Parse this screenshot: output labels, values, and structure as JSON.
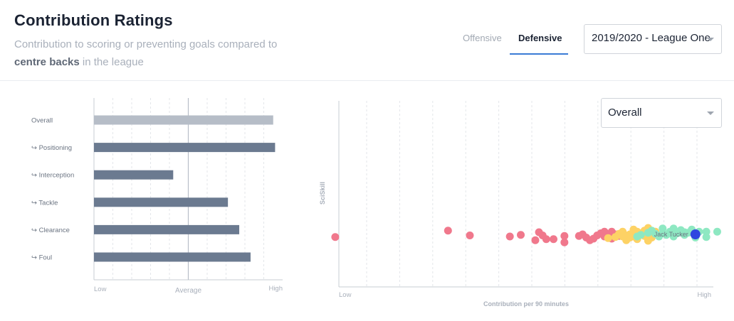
{
  "header": {
    "title": "Contribution Ratings",
    "subtitle_before": "Contribution to scoring or preventing goals compared to",
    "subtitle_bold": "centre backs",
    "subtitle_after": "in the league",
    "tabs": [
      {
        "label": "Offensive",
        "active": false
      },
      {
        "label": "Defensive",
        "active": true
      }
    ],
    "season_select": "2019/2020 - League One",
    "accent_color": "#3a7bd5"
  },
  "metric_select": "Overall",
  "chart_data": [
    {
      "type": "bar",
      "orientation": "horizontal",
      "categories": [
        "Overall",
        "↪ Positioning",
        "↪ Interception",
        "↪ Tackle",
        "↪ Clearance",
        "↪ Foul"
      ],
      "values": [
        0.95,
        0.96,
        0.42,
        0.71,
        0.77,
        0.83
      ],
      "bar_colors": [
        "#b6bdc7",
        "#6b7a90",
        "#6b7a90",
        "#6b7a90",
        "#6b7a90",
        "#6b7a90"
      ],
      "xlim": [
        0,
        1
      ],
      "average": 0.5,
      "xtick_labels": {
        "low": "Low",
        "average": "Average",
        "high": "High"
      },
      "grid": "vertical dashed"
    },
    {
      "type": "scatter",
      "xlabel": "Contribution per 90 minutes",
      "ylabel": "SciSkill",
      "xlim": [
        0,
        1
      ],
      "xtick_labels": {
        "low": "Low",
        "high": "High"
      },
      "grid": "vertical dashed",
      "colors": {
        "red": "#f0788c",
        "yellow": "#fdd265",
        "green": "#8ee8c2",
        "highlight": "#2f46e0"
      },
      "highlight": {
        "label": "Jack Tucker",
        "x": 0.98,
        "y": 0.5
      },
      "points": {
        "red": [
          [
            -0.01,
            0.45
          ],
          [
            0.3,
            0.57
          ],
          [
            0.36,
            0.48
          ],
          [
            0.47,
            0.46
          ],
          [
            0.5,
            0.49
          ],
          [
            0.55,
            0.54
          ],
          [
            0.56,
            0.48
          ],
          [
            0.54,
            0.39
          ],
          [
            0.57,
            0.41
          ],
          [
            0.59,
            0.41
          ],
          [
            0.62,
            0.47
          ],
          [
            0.62,
            0.35
          ],
          [
            0.66,
            0.47
          ],
          [
            0.67,
            0.5
          ],
          [
            0.68,
            0.44
          ],
          [
            0.69,
            0.39
          ],
          [
            0.71,
            0.48
          ],
          [
            0.72,
            0.52
          ],
          [
            0.73,
            0.55
          ],
          [
            0.74,
            0.45
          ],
          [
            0.75,
            0.42
          ],
          [
            0.76,
            0.5
          ],
          [
            0.73,
            0.46
          ],
          [
            0.7,
            0.42
          ],
          [
            0.75,
            0.55
          ],
          [
            0.77,
            0.47
          ]
        ],
        "yellow": [
          [
            0.74,
            0.43
          ],
          [
            0.76,
            0.45
          ],
          [
            0.77,
            0.51
          ],
          [
            0.78,
            0.55
          ],
          [
            0.79,
            0.48
          ],
          [
            0.8,
            0.44
          ],
          [
            0.81,
            0.59
          ],
          [
            0.79,
            0.39
          ],
          [
            0.82,
            0.41
          ],
          [
            0.83,
            0.52
          ],
          [
            0.84,
            0.47
          ],
          [
            0.82,
            0.55
          ],
          [
            0.85,
            0.62
          ],
          [
            0.86,
            0.44
          ],
          [
            0.85,
            0.38
          ],
          [
            0.87,
            0.55
          ],
          [
            0.88,
            0.48
          ],
          [
            0.8,
            0.5
          ],
          [
            0.84,
            0.51
          ],
          [
            0.78,
            0.46
          ],
          [
            0.81,
            0.46
          ],
          [
            0.84,
            0.57
          ]
        ],
        "green": [
          [
            0.82,
            0.46
          ],
          [
            0.83,
            0.49
          ],
          [
            0.85,
            0.53
          ],
          [
            0.86,
            0.57
          ],
          [
            0.87,
            0.51
          ],
          [
            0.88,
            0.46
          ],
          [
            0.89,
            0.61
          ],
          [
            0.89,
            0.52
          ],
          [
            0.9,
            0.49
          ],
          [
            0.91,
            0.55
          ],
          [
            0.92,
            0.46
          ],
          [
            0.93,
            0.52
          ],
          [
            0.92,
            0.57
          ],
          [
            0.94,
            0.58
          ],
          [
            0.95,
            0.49
          ],
          [
            0.96,
            0.53
          ],
          [
            0.97,
            0.59
          ],
          [
            0.99,
            0.55
          ],
          [
            1.01,
            0.45
          ],
          [
            1.01,
            0.55
          ],
          [
            1.04,
            0.55
          ],
          [
            0.92,
            0.61
          ],
          [
            0.95,
            0.54
          ],
          [
            0.98,
            0.44
          ]
        ]
      }
    }
  ]
}
